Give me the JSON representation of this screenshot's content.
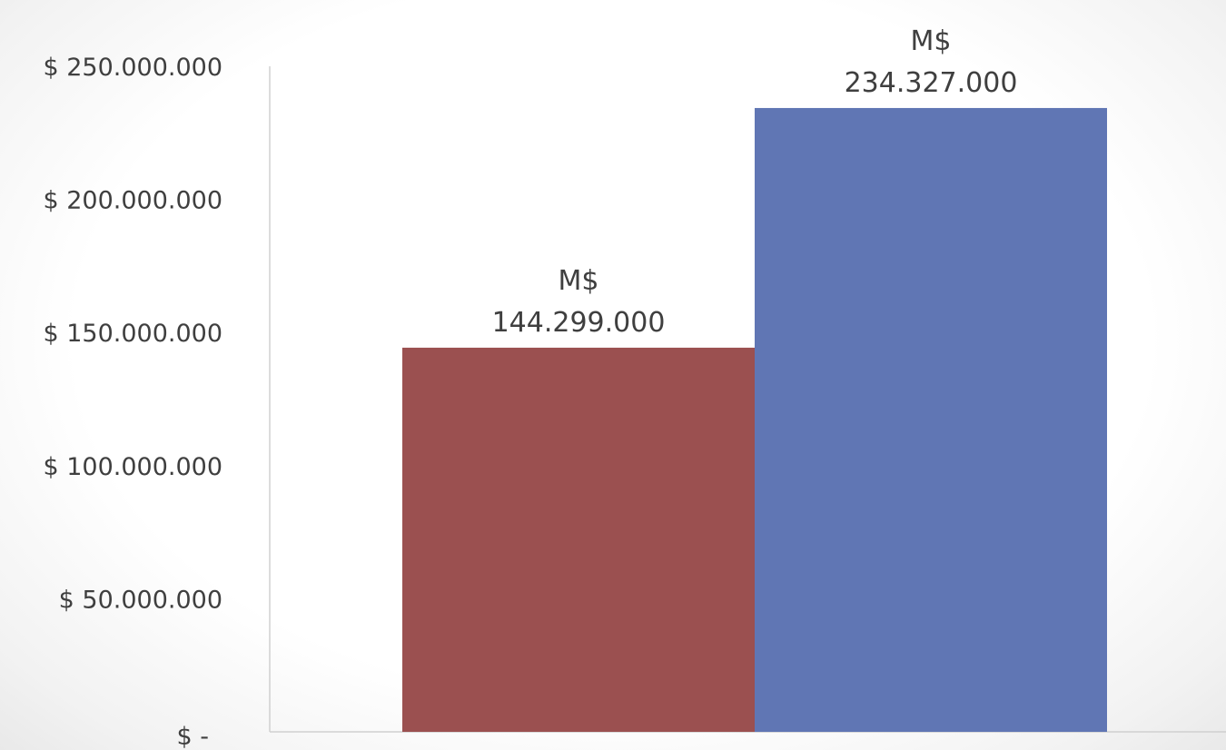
{
  "chart_data": {
    "type": "bar",
    "title": "",
    "xlabel": "",
    "ylabel": "",
    "categories": [
      "",
      ""
    ],
    "values": [
      144299000,
      234327000
    ],
    "data_labels": [
      [
        "M$",
        "144.299.000"
      ],
      [
        "M$",
        "234.327.000"
      ]
    ],
    "colors": [
      "#9b5050",
      "#6076b4"
    ],
    "ylim": [
      0,
      250000000
    ],
    "yticks": [
      0,
      50000000,
      100000000,
      150000000,
      200000000,
      250000000
    ],
    "ytick_labels": [
      "$ -",
      "$ 50.000.000",
      "$ 100.000.000",
      "$ 150.000.000",
      "$ 200.000.000",
      "$ 250.000.000"
    ],
    "grid": false,
    "legend": "none"
  }
}
